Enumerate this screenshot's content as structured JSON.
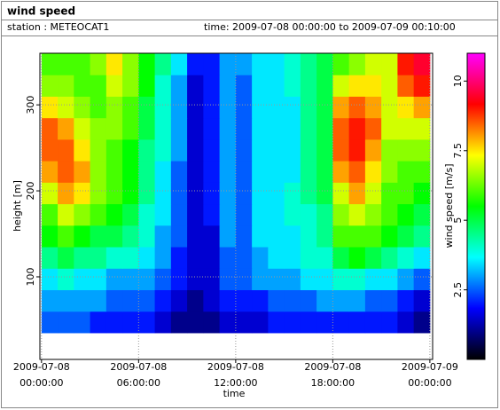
{
  "chart_data": {
    "type": "heatmap",
    "title": "wind speed",
    "station": "station : METEOCAT1",
    "subtitle": "time: 2009-07-08 00:00:00 to 2009-07-09 00:10:00",
    "x_label": "time",
    "y_label": "height [m]",
    "colorbar_label": "wind speed [m/s]",
    "xlim": [
      -0.1,
      24.17
    ],
    "ylim": [
      4,
      360
    ],
    "xticks": [
      {
        "value": 0,
        "date": "2009-07-08",
        "label": "00:00:00"
      },
      {
        "value": 6,
        "date": "2009-07-08",
        "label": "06:00:00"
      },
      {
        "value": 12,
        "date": "2009-07-08",
        "label": "12:00:00"
      },
      {
        "value": 18,
        "date": "2009-07-08",
        "label": "18:00:00"
      },
      {
        "value": 24,
        "date": "2009-07-09",
        "label": "00:00:00"
      }
    ],
    "yticks": [
      100,
      200,
      300
    ],
    "grid": true,
    "zlim": [
      0,
      11
    ],
    "zticks": [
      2.5,
      5,
      7.5,
      10
    ],
    "colorscale": [
      "#000000",
      "#0000ff",
      "#00ffff",
      "#00ff00",
      "#ffff00",
      "#ff0000",
      "#ff00ff"
    ],
    "x": [
      0.5,
      1.5,
      2.5,
      3.5,
      4.5,
      5.5,
      6.5,
      7.5,
      8.5,
      9.5,
      10.5,
      11.5,
      12.5,
      13.5,
      14.5,
      15.5,
      16.5,
      17.5,
      18.5,
      19.5,
      20.5,
      21.5,
      22.5,
      23.5
    ],
    "y": [
      47.5,
      72.5,
      97.5,
      122.5,
      147.5,
      172.5,
      197.5,
      222.5,
      247.5,
      272.5,
      297.5,
      322.5,
      347.5
    ],
    "z": [
      [
        2.5,
        2.5,
        2.5,
        2,
        2,
        2,
        2,
        1.5,
        1,
        1,
        1,
        1.5,
        1.5,
        1.5,
        2,
        2,
        2,
        2,
        2,
        2,
        2,
        2,
        1.5,
        1
      ],
      [
        3,
        3,
        3,
        3,
        2.5,
        2.5,
        2.5,
        2,
        1.5,
        1,
        1.5,
        2,
        2,
        2,
        2.5,
        2.5,
        2.5,
        3,
        3,
        3,
        2.5,
        2.5,
        2,
        1.5
      ],
      [
        3.5,
        4,
        3.5,
        3.5,
        3,
        3,
        3,
        2.5,
        2,
        1.5,
        1.5,
        2.5,
        2.5,
        3,
        3,
        3,
        3.5,
        3.5,
        4,
        4,
        3.5,
        3.5,
        3,
        2.5
      ],
      [
        4.5,
        5,
        4.5,
        4.5,
        4,
        4,
        3.5,
        3,
        2,
        1.5,
        1.5,
        2.5,
        2.5,
        3,
        3.5,
        3.5,
        4,
        4,
        5,
        5.5,
        5,
        4.5,
        4,
        3.5
      ],
      [
        5.5,
        6,
        5.5,
        5,
        5,
        4.5,
        4,
        3,
        2.5,
        1.5,
        1.5,
        3,
        2.5,
        3.5,
        3.5,
        3.5,
        4,
        4.5,
        6,
        6,
        6,
        5.5,
        5,
        4.5
      ],
      [
        6,
        7,
        6.5,
        6,
        5.5,
        5,
        4,
        3.5,
        2.5,
        1.5,
        2,
        3,
        2.5,
        3.5,
        3.5,
        4,
        4,
        4.5,
        6.5,
        7,
        6.5,
        6,
        5.5,
        5
      ],
      [
        7,
        8,
        7.5,
        6.5,
        6,
        5.5,
        4.5,
        3.5,
        2.5,
        1.5,
        2,
        3,
        2.5,
        3.5,
        3.5,
        4,
        4.5,
        5,
        7,
        8,
        7,
        6,
        6,
        5.5
      ],
      [
        8,
        8.5,
        8,
        6.5,
        6,
        5.5,
        4.5,
        3.5,
        2.5,
        1.5,
        2,
        3,
        2.5,
        3.5,
        3.5,
        3.5,
        4.5,
        5,
        8,
        8.5,
        7.5,
        6.5,
        6,
        6
      ],
      [
        8.5,
        8.5,
        7.5,
        6.5,
        6,
        5.5,
        4.5,
        4,
        3,
        1.5,
        2,
        3,
        2.5,
        3.5,
        3.5,
        3.5,
        4.5,
        5,
        8.5,
        9,
        8,
        6.5,
        6.5,
        6.5
      ],
      [
        8.5,
        8,
        7,
        6.5,
        6.5,
        6,
        5,
        4,
        3,
        1.5,
        2,
        3,
        2.5,
        3.5,
        3.5,
        3.5,
        4.5,
        5,
        8.5,
        9,
        8.5,
        7,
        7,
        7
      ],
      [
        7.5,
        7,
        6.5,
        6,
        6.5,
        6,
        5,
        4,
        3,
        1.5,
        2,
        3,
        2.5,
        3.5,
        3.5,
        3.5,
        4.5,
        5,
        8,
        8.5,
        8,
        7,
        7.5,
        8
      ],
      [
        6.5,
        6.5,
        6,
        6,
        7,
        6.5,
        5.5,
        4,
        3,
        1.5,
        2,
        3,
        2.5,
        3.5,
        3.5,
        4,
        4.5,
        5,
        7,
        7.5,
        7.5,
        7,
        8.5,
        9
      ],
      [
        6,
        6,
        6,
        6.5,
        7.5,
        6.5,
        5.5,
        4.5,
        3.5,
        2,
        2,
        3,
        3,
        3.5,
        3.5,
        4,
        4.5,
        5,
        6,
        6.5,
        7,
        7,
        9,
        9.5
      ]
    ]
  }
}
